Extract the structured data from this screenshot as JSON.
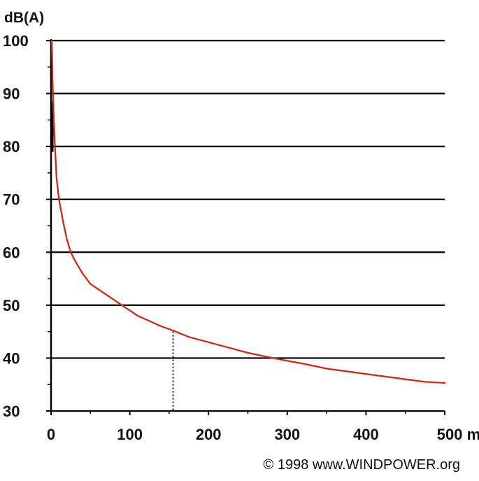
{
  "chart_data": {
    "type": "line",
    "ylabel": "dB(A)",
    "xunit": "m",
    "xlim": [
      0,
      500
    ],
    "ylim": [
      30,
      100
    ],
    "xticks": [
      0,
      100,
      200,
      300,
      400,
      500
    ],
    "yticks": [
      30,
      40,
      50,
      60,
      70,
      80,
      90,
      100
    ],
    "grid": "horizontal",
    "series": [
      {
        "color": "#cc2a14",
        "x": [
          1,
          2,
          3,
          4,
          5,
          7,
          10,
          15,
          20,
          25,
          30,
          40,
          50,
          60,
          70,
          80,
          90,
          100,
          110,
          125,
          140,
          155,
          175,
          200,
          225,
          250,
          275,
          300,
          325,
          350,
          375,
          400,
          425,
          450,
          475,
          500
        ],
        "y": [
          100,
          92,
          87,
          83,
          80,
          74,
          70,
          66,
          62.5,
          60,
          58.5,
          56,
          54,
          53,
          52,
          51,
          50,
          49,
          48,
          47,
          46,
          45.2,
          44,
          43,
          42,
          41,
          40.2,
          39.5,
          38.8,
          38,
          37.5,
          37,
          36.5,
          36,
          35.5,
          35.3
        ]
      }
    ],
    "marker": {
      "x": 155,
      "y": 45,
      "style": "dotted-vertical",
      "color": "#111111"
    },
    "credit": "© 1998 www.WINDPOWER.org"
  }
}
